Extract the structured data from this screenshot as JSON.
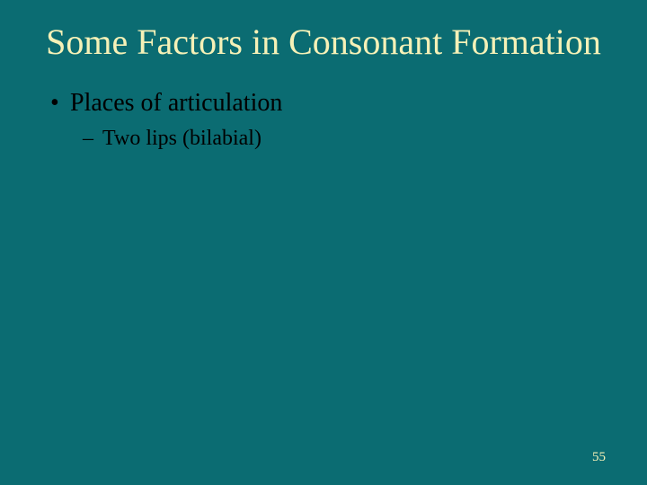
{
  "slide": {
    "background_color": "#0b6c72",
    "title": {
      "text": "Some Factors in Consonant Formation",
      "color": "#f5f1b7",
      "fontsize": 40
    },
    "bullets": {
      "level1": {
        "marker": "•",
        "text": "Places of articulation",
        "color": "#000000",
        "fontsize": 28
      },
      "level2": {
        "marker": "–",
        "text": "Two lips (bilabial)",
        "color": "#000000",
        "fontsize": 24
      }
    },
    "page_number": {
      "text": "55",
      "color": "#f5f1b7",
      "fontsize": 15
    }
  }
}
